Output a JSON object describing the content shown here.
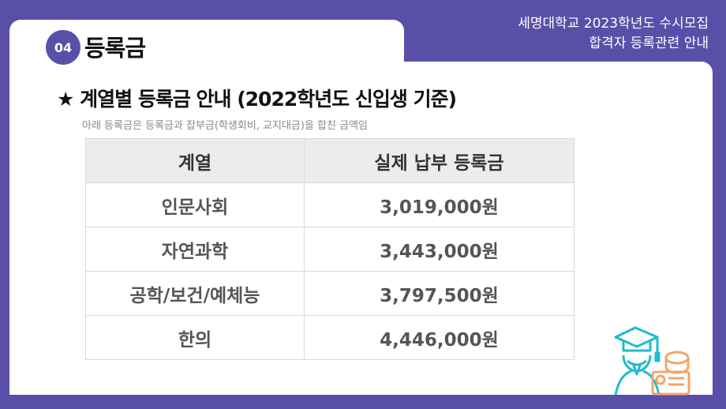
{
  "header": {
    "line1": "세명대학교 2023학년도 수시모집",
    "line2": "합격자 등록관련 안내"
  },
  "section": {
    "number": "04",
    "title": "등록금"
  },
  "heading": "★ 계열별 등록금 안내 (2022학년도 신입생 기준)",
  "note": "아래 등록금은 등록금과 잡부금(학생회비, 교지대금)을 합친 금액임",
  "table": {
    "headers": [
      "계열",
      "실제 납부 등록금"
    ],
    "rows": [
      [
        "인문사회",
        "3,019,000원"
      ],
      [
        "자연과학",
        "3,443,000원"
      ],
      [
        "공학/보건/예체능",
        "3,797,500원"
      ],
      [
        "한의",
        "4,446,000원"
      ]
    ]
  },
  "colors": {
    "brand": "#5a4fa8",
    "icon_teal": "#1fbccc",
    "icon_orange": "#f4a46a"
  },
  "illustration": "graduate-with-coins-icon"
}
